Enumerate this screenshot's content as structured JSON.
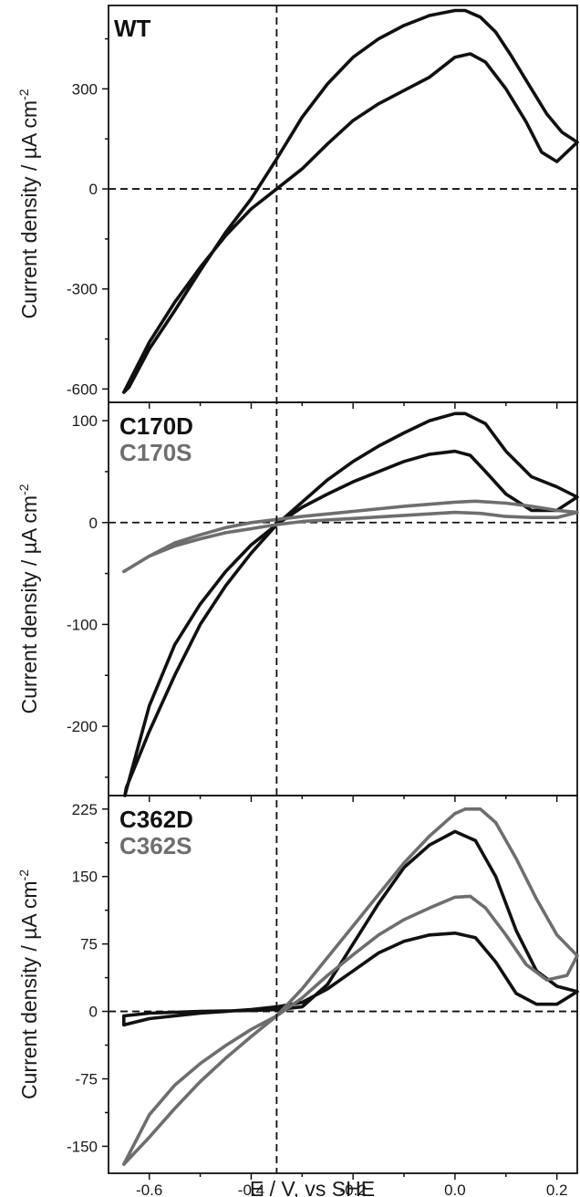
{
  "chart_data": [
    {
      "type": "line",
      "panel_label": "WT",
      "ylabel_main": "Current density / µA cm",
      "ylabel_sup": "-2",
      "xlim": [
        -0.68,
        0.24
      ],
      "ylim": [
        -640,
        550
      ],
      "yticks": [
        -600,
        -300,
        0,
        300
      ],
      "ytick_labels": [
        "-600",
        "-300",
        "0",
        "300"
      ],
      "series": [
        {
          "color": "#111111",
          "x": [
            -0.65,
            -0.6,
            -0.55,
            -0.5,
            -0.45,
            -0.4,
            -0.35,
            -0.3,
            -0.25,
            -0.2,
            -0.15,
            -0.1,
            -0.05,
            0.0,
            0.03,
            0.06,
            0.1,
            0.14,
            0.17,
            0.2,
            0.24,
            0.21,
            0.18,
            0.15,
            0.11,
            0.08,
            0.05,
            0.02,
            0.0,
            -0.05,
            -0.1,
            -0.15,
            -0.2,
            -0.25,
            -0.3,
            -0.35,
            -0.4,
            -0.45,
            -0.5,
            -0.55,
            -0.6,
            -0.64,
            -0.65
          ],
          "y": [
            -610,
            -460,
            -340,
            -235,
            -140,
            -60,
            0,
            60,
            135,
            205,
            255,
            295,
            335,
            395,
            405,
            380,
            300,
            200,
            110,
            82,
            140,
            170,
            225,
            300,
            400,
            470,
            515,
            535,
            535,
            520,
            490,
            450,
            395,
            315,
            215,
            90,
            -30,
            -130,
            -245,
            -365,
            -480,
            -595,
            -610
          ]
        }
      ]
    },
    {
      "type": "line",
      "panel_label": "",
      "legend": [
        {
          "label": "C170D",
          "color": "#111111"
        },
        {
          "label": "C170S",
          "color": "#6e6e6e"
        }
      ],
      "ylabel_main": "Current density / µA cm",
      "ylabel_sup": "-2",
      "xlim": [
        -0.68,
        0.24
      ],
      "ylim": [
        -268,
        118
      ],
      "yticks": [
        -200,
        -100,
        0,
        100
      ],
      "ytick_labels": [
        "-200",
        "-100",
        "0",
        "100"
      ],
      "series": [
        {
          "name": "C170D",
          "color": "#111111",
          "x": [
            -0.648,
            -0.6,
            -0.55,
            -0.5,
            -0.45,
            -0.4,
            -0.35,
            -0.3,
            -0.25,
            -0.2,
            -0.15,
            -0.1,
            -0.05,
            0.0,
            0.03,
            0.06,
            0.1,
            0.15,
            0.2,
            0.24,
            0.2,
            0.15,
            0.1,
            0.06,
            0.02,
            0.0,
            -0.05,
            -0.1,
            -0.15,
            -0.2,
            -0.25,
            -0.3,
            -0.35,
            -0.4,
            -0.45,
            -0.5,
            -0.55,
            -0.6,
            -0.645,
            -0.648
          ],
          "y": [
            -268,
            -180,
            -120,
            -80,
            -48,
            -22,
            -2,
            15,
            28,
            40,
            50,
            60,
            67,
            70,
            66,
            50,
            28,
            12,
            12,
            25,
            35,
            45,
            70,
            97,
            107,
            107,
            100,
            88,
            75,
            60,
            42,
            20,
            -2,
            -30,
            -62,
            -100,
            -150,
            -205,
            -260,
            -268
          ]
        },
        {
          "name": "C170S",
          "color": "#6e6e6e",
          "x": [
            -0.65,
            -0.6,
            -0.55,
            -0.5,
            -0.45,
            -0.4,
            -0.35,
            -0.3,
            -0.2,
            -0.1,
            0.0,
            0.05,
            0.1,
            0.15,
            0.2,
            0.24,
            0.2,
            0.15,
            0.1,
            0.04,
            0.0,
            -0.1,
            -0.2,
            -0.3,
            -0.35,
            -0.4,
            -0.45,
            -0.5,
            -0.55,
            -0.6,
            -0.65
          ],
          "y": [
            -48,
            -33,
            -23,
            -16,
            -10,
            -6,
            -2,
            1,
            4,
            7,
            10,
            9,
            6,
            5,
            5,
            10,
            12,
            16,
            19,
            21,
            20,
            16,
            11,
            6,
            3,
            0,
            -5,
            -12,
            -20,
            -33,
            -48
          ]
        }
      ]
    },
    {
      "type": "line",
      "panel_label": "",
      "legend": [
        {
          "label": "C362D",
          "color": "#111111"
        },
        {
          "label": "C362S",
          "color": "#6e6e6e"
        }
      ],
      "ylabel_main": "Current density / µA cm",
      "ylabel_sup": "-2",
      "xlim": [
        -0.68,
        0.24
      ],
      "ylim": [
        -180,
        240
      ],
      "yticks": [
        -150,
        -75,
        0,
        75,
        150,
        225
      ],
      "ytick_labels": [
        "-150",
        "-75",
        "0",
        "75",
        "150",
        "225"
      ],
      "xticks": [
        -0.6,
        -0.4,
        -0.2,
        0.0,
        0.2
      ],
      "xtick_labels": [
        "-0.6",
        "-0.4",
        "-0.2",
        "0.0",
        "0.2"
      ],
      "xlabel": "E / V, vs SHE",
      "series": [
        {
          "name": "C362D",
          "color": "#111111",
          "x": [
            -0.65,
            -0.6,
            -0.5,
            -0.4,
            -0.35,
            -0.3,
            -0.25,
            -0.2,
            -0.15,
            -0.1,
            -0.05,
            0.0,
            0.04,
            0.08,
            0.12,
            0.16,
            0.2,
            0.24,
            0.2,
            0.16,
            0.12,
            0.08,
            0.04,
            0.0,
            -0.05,
            -0.1,
            -0.15,
            -0.2,
            -0.25,
            -0.3,
            -0.35,
            -0.4,
            -0.5,
            -0.6,
            -0.65,
            -0.65
          ],
          "y": [
            -15,
            -8,
            -2,
            2,
            5,
            10,
            25,
            45,
            65,
            78,
            85,
            87,
            82,
            55,
            20,
            8,
            8,
            22,
            28,
            45,
            90,
            150,
            190,
            200,
            185,
            160,
            120,
            75,
            30,
            5,
            2,
            1,
            0,
            -2,
            -5,
            -15
          ]
        },
        {
          "name": "C362S",
          "color": "#6e6e6e",
          "x": [
            -0.65,
            -0.6,
            -0.55,
            -0.5,
            -0.45,
            -0.4,
            -0.35,
            -0.3,
            -0.25,
            -0.2,
            -0.15,
            -0.1,
            -0.05,
            0.0,
            0.03,
            0.06,
            0.1,
            0.14,
            0.18,
            0.22,
            0.24,
            0.2,
            0.16,
            0.12,
            0.08,
            0.05,
            0.02,
            0.0,
            -0.05,
            -0.1,
            -0.15,
            -0.2,
            -0.25,
            -0.3,
            -0.35,
            -0.4,
            -0.45,
            -0.5,
            -0.55,
            -0.6,
            -0.65
          ],
          "y": [
            -170,
            -115,
            -82,
            -58,
            -38,
            -20,
            -5,
            15,
            40,
            63,
            85,
            102,
            115,
            127,
            128,
            115,
            85,
            52,
            35,
            40,
            62,
            85,
            125,
            170,
            210,
            225,
            225,
            220,
            195,
            165,
            130,
            95,
            60,
            25,
            -5,
            -28,
            -52,
            -78,
            -108,
            -140,
            -170
          ]
        }
      ]
    }
  ]
}
